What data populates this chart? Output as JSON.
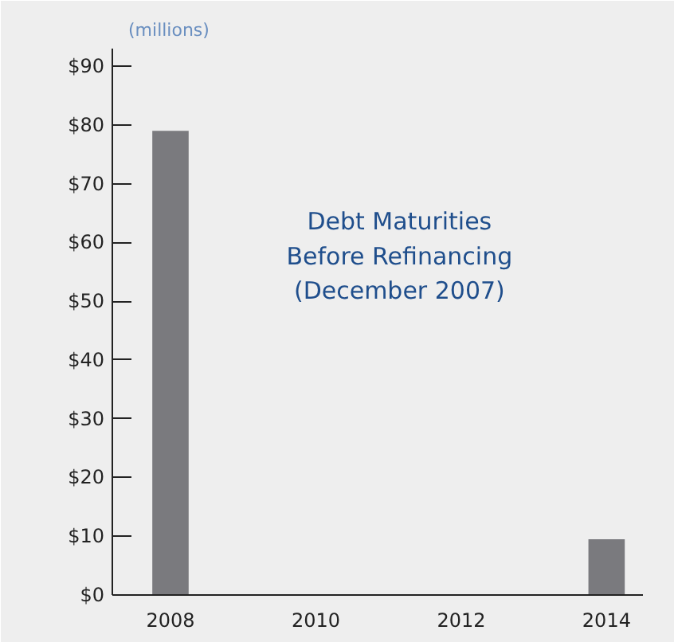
{
  "chart_data": {
    "type": "bar",
    "title": "Debt Maturities\nBefore Refinancing\n(December 2007)",
    "ylabel": "(millions)",
    "x": [
      2008,
      2014
    ],
    "series": [
      {
        "color": "#7a7a7e",
        "values": [
          79,
          9.5
        ]
      }
    ],
    "xlim": [
      2007.2,
      2014.5
    ],
    "xticks": [
      2008,
      2010,
      2012,
      2014
    ],
    "ylim": [
      0,
      93
    ],
    "yticks": [
      {
        "value": 0,
        "label": "$0"
      },
      {
        "value": 10,
        "label": "$10"
      },
      {
        "value": 20,
        "label": "$20"
      },
      {
        "value": 30,
        "label": "$30"
      },
      {
        "value": 40,
        "label": "$40"
      },
      {
        "value": 50,
        "label": "$50"
      },
      {
        "value": 60,
        "label": "$60"
      },
      {
        "value": 70,
        "label": "$70"
      },
      {
        "value": 80,
        "label": "$80"
      },
      {
        "value": 90,
        "label": "$90"
      }
    ],
    "grid": false
  }
}
